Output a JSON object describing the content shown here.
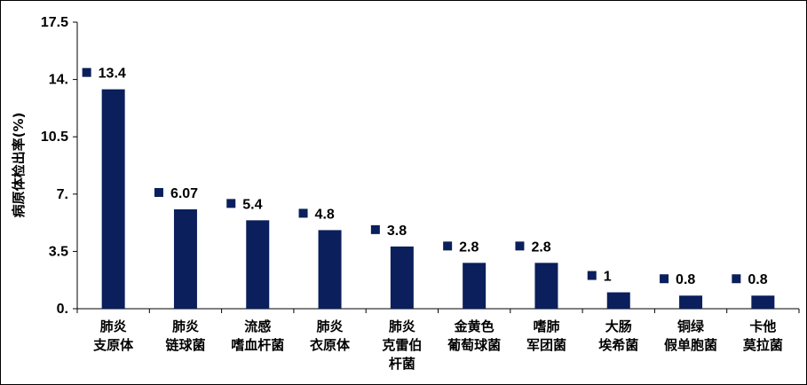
{
  "chart_data": {
    "type": "bar",
    "title": "",
    "xlabel": "",
    "ylabel": "病原体检出率(%)",
    "ylim": [
      0,
      17.5
    ],
    "yticks": [
      "0.",
      "3.5",
      "7.",
      "10.5",
      "14.",
      "17.5"
    ],
    "ytick_values": [
      0,
      3.5,
      7,
      10.5,
      14,
      17.5
    ],
    "grid": false,
    "legend": "none",
    "categories": [
      [
        "肺炎",
        "支原体"
      ],
      [
        "肺炎",
        "链球菌"
      ],
      [
        "流感",
        "嗜血杆菌"
      ],
      [
        "肺炎",
        "衣原体"
      ],
      [
        "肺炎",
        "克雷伯",
        "杆菌"
      ],
      [
        "金黄色",
        "葡萄球菌"
      ],
      [
        "嗜肺",
        "军团菌"
      ],
      [
        "大肠",
        "埃希菌"
      ],
      [
        "铜绿",
        "假单胞菌"
      ],
      [
        "卡他",
        "莫拉菌"
      ]
    ],
    "values": [
      13.4,
      6.07,
      5.4,
      4.8,
      3.8,
      2.8,
      2.8,
      1,
      0.8,
      0.8
    ],
    "data_labels": [
      "13.4",
      "6.07",
      "5.4",
      "4.8",
      "3.8",
      "2.8",
      "2.8",
      "1",
      "0.8",
      "0.8"
    ],
    "colors": {
      "bar": "#0a1f5c",
      "marker": "#0a1f5c",
      "axis": "#000000"
    }
  }
}
